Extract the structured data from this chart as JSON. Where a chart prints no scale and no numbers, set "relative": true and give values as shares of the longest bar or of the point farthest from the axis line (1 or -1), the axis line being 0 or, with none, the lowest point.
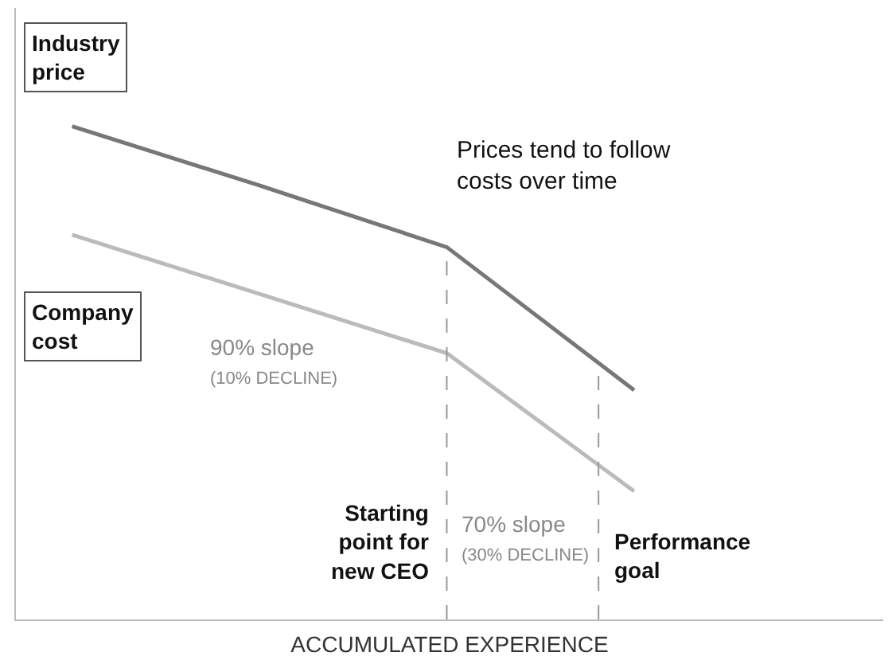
{
  "chart_data": {
    "type": "line",
    "relative": true,
    "xlabel": "ACCUMULATED EXPERIENCE",
    "categories": [
      null,
      null,
      null,
      null
    ],
    "series": [
      {
        "name": "Industry\nprice",
        "color": "#777777",
        "values": [
          1.0,
          0.88,
          0.755,
          0.465
        ]
      },
      {
        "name": "Company\ncost",
        "color": "#bbbbbb",
        "values": [
          0.78,
          0.66,
          0.54,
          0.26
        ]
      }
    ],
    "annotations": [
      "Prices tend to follow\ncosts over time",
      "90% slope\n(10% DECLINE)",
      "70% slope\n(30% DECLINE)",
      "Starting\npoint for\nnew CEO",
      "Performance\ngoal"
    ],
    "marker": "none",
    "line_style": "solid",
    "legend": false
  }
}
